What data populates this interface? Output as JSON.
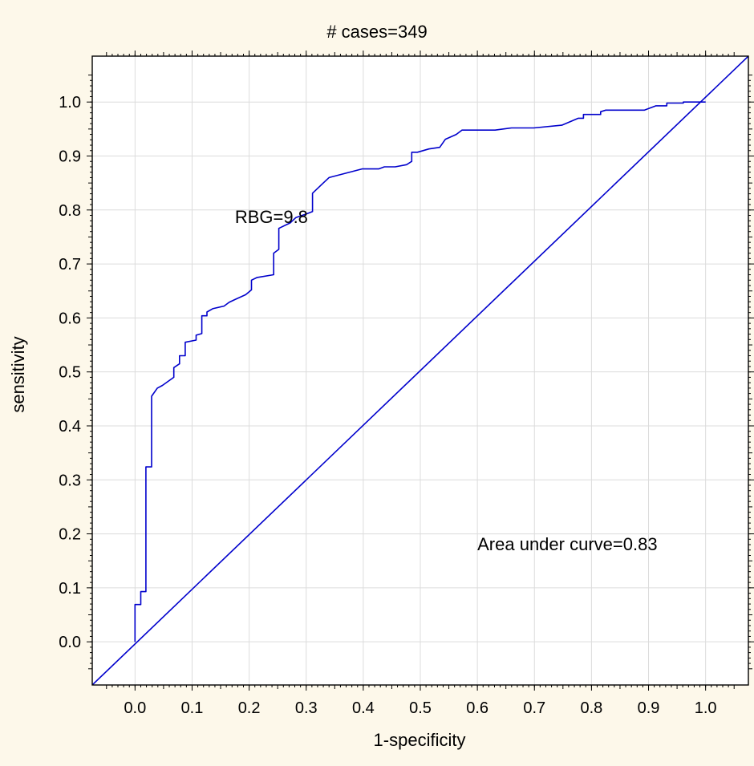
{
  "chart_data": {
    "type": "line",
    "title": "# cases=349",
    "xlabel": "1-specificity",
    "ylabel": "sensitivity",
    "xlim": [
      -0.075,
      1.075
    ],
    "ylim": [
      -0.08,
      1.085
    ],
    "x_ticks": [
      "0.0",
      "0.1",
      "0.2",
      "0.3",
      "0.4",
      "0.5",
      "0.6",
      "0.7",
      "0.8",
      "0.9",
      "1.0"
    ],
    "y_ticks": [
      "0.0",
      "0.1",
      "0.2",
      "0.3",
      "0.4",
      "0.5",
      "0.6",
      "0.7",
      "0.8",
      "0.9",
      "1.0"
    ],
    "grid": true,
    "line_color": "#0000cc",
    "series": [
      {
        "style": "roc-curve",
        "points": [
          [
            0.0,
            0.0
          ],
          [
            0.0,
            0.069
          ],
          [
            0.01,
            0.069
          ],
          [
            0.01,
            0.093
          ],
          [
            0.019,
            0.093
          ],
          [
            0.019,
            0.324
          ],
          [
            0.029,
            0.324
          ],
          [
            0.029,
            0.455
          ],
          [
            0.039,
            0.47
          ],
          [
            0.048,
            0.475
          ],
          [
            0.068,
            0.49
          ],
          [
            0.068,
            0.508
          ],
          [
            0.078,
            0.515
          ],
          [
            0.078,
            0.53
          ],
          [
            0.088,
            0.53
          ],
          [
            0.088,
            0.555
          ],
          [
            0.107,
            0.559
          ],
          [
            0.107,
            0.568
          ],
          [
            0.117,
            0.571
          ],
          [
            0.117,
            0.604
          ],
          [
            0.126,
            0.604
          ],
          [
            0.126,
            0.611
          ],
          [
            0.136,
            0.617
          ],
          [
            0.156,
            0.622
          ],
          [
            0.165,
            0.629
          ],
          [
            0.175,
            0.634
          ],
          [
            0.194,
            0.643
          ],
          [
            0.204,
            0.652
          ],
          [
            0.204,
            0.67
          ],
          [
            0.214,
            0.675
          ],
          [
            0.243,
            0.68
          ],
          [
            0.243,
            0.72
          ],
          [
            0.252,
            0.727
          ],
          [
            0.252,
            0.766
          ],
          [
            0.272,
            0.776
          ],
          [
            0.282,
            0.786
          ],
          [
            0.301,
            0.793
          ],
          [
            0.311,
            0.797
          ],
          [
            0.311,
            0.831
          ],
          [
            0.33,
            0.85
          ],
          [
            0.34,
            0.86
          ],
          [
            0.369,
            0.868
          ],
          [
            0.398,
            0.876
          ],
          [
            0.427,
            0.876
          ],
          [
            0.437,
            0.88
          ],
          [
            0.456,
            0.88
          ],
          [
            0.476,
            0.884
          ],
          [
            0.485,
            0.89
          ],
          [
            0.485,
            0.907
          ],
          [
            0.495,
            0.907
          ],
          [
            0.515,
            0.913
          ],
          [
            0.534,
            0.916
          ],
          [
            0.544,
            0.931
          ],
          [
            0.563,
            0.94
          ],
          [
            0.573,
            0.948
          ],
          [
            0.631,
            0.948
          ],
          [
            0.66,
            0.952
          ],
          [
            0.699,
            0.952
          ],
          [
            0.748,
            0.957
          ],
          [
            0.777,
            0.97
          ],
          [
            0.786,
            0.97
          ],
          [
            0.786,
            0.977
          ],
          [
            0.816,
            0.977
          ],
          [
            0.816,
            0.982
          ],
          [
            0.825,
            0.985
          ],
          [
            0.893,
            0.985
          ],
          [
            0.913,
            0.993
          ],
          [
            0.932,
            0.993
          ],
          [
            0.932,
            0.998
          ],
          [
            0.961,
            0.998
          ],
          [
            0.961,
            1.0
          ],
          [
            1.0,
            1.0
          ]
        ]
      },
      {
        "style": "reference-diagonal",
        "points": [
          [
            -0.075,
            -0.08
          ],
          [
            1.075,
            1.085
          ]
        ]
      }
    ],
    "annotations": [
      {
        "text": "RBG=9.8",
        "x": 0.175,
        "y": 0.776
      },
      {
        "text": "Area under curve=0.83",
        "x": 0.6,
        "y": 0.17
      }
    ]
  }
}
